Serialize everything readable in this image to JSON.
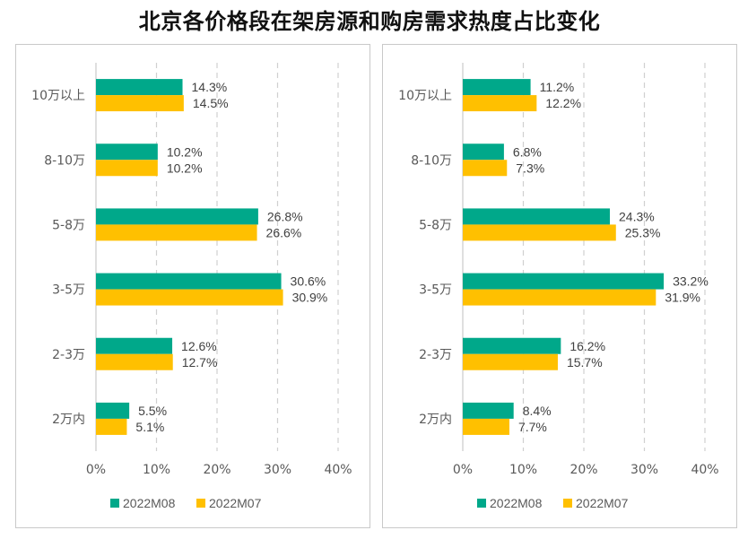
{
  "title": "北京各价格段在架房源和购房需求热度占比变化",
  "colors": {
    "s2022M08": "#00a88a",
    "s2022M07": "#ffc000",
    "grid": "#d0d0d0",
    "axis": "#bfbfbf"
  },
  "chart_data": [
    {
      "type": "bar",
      "orientation": "horizontal",
      "title": "",
      "categories": [
        "10万以上",
        "8-10万",
        "5-8万",
        "3-5万",
        "2-3万",
        "2万内"
      ],
      "series": [
        {
          "name": "2022M08",
          "values": [
            14.3,
            10.2,
            26.8,
            30.6,
            12.6,
            5.5
          ],
          "labels": [
            "14.3%",
            "10.2%",
            "26.8%",
            "30.6%",
            "12.6%",
            "5.5%"
          ]
        },
        {
          "name": "2022M07",
          "values": [
            14.5,
            10.2,
            26.6,
            30.9,
            12.7,
            5.1
          ],
          "labels": [
            "14.5%",
            "10.2%",
            "26.6%",
            "30.9%",
            "12.7%",
            "5.1%"
          ]
        }
      ],
      "xlim": [
        0,
        40
      ],
      "xticks": [
        "0%",
        "10%",
        "20%",
        "30%",
        "40%"
      ],
      "grid": "vertical dashed",
      "legend": "bottom"
    },
    {
      "type": "bar",
      "orientation": "horizontal",
      "title": "",
      "categories": [
        "10万以上",
        "8-10万",
        "5-8万",
        "3-5万",
        "2-3万",
        "2万内"
      ],
      "series": [
        {
          "name": "2022M08",
          "values": [
            11.2,
            6.8,
            24.3,
            33.2,
            16.2,
            8.4
          ],
          "labels": [
            "11.2%",
            "6.8%",
            "24.3%",
            "33.2%",
            "16.2%",
            "8.4%"
          ]
        },
        {
          "name": "2022M07",
          "values": [
            12.2,
            7.3,
            25.3,
            31.9,
            15.7,
            7.7
          ],
          "labels": [
            "12.2%",
            "7.3%",
            "25.3%",
            "31.9%",
            "15.7%",
            "7.7%"
          ]
        }
      ],
      "xlim": [
        0,
        40
      ],
      "xticks": [
        "0%",
        "10%",
        "20%",
        "30%",
        "40%"
      ],
      "grid": "vertical dashed",
      "legend": "bottom"
    }
  ]
}
